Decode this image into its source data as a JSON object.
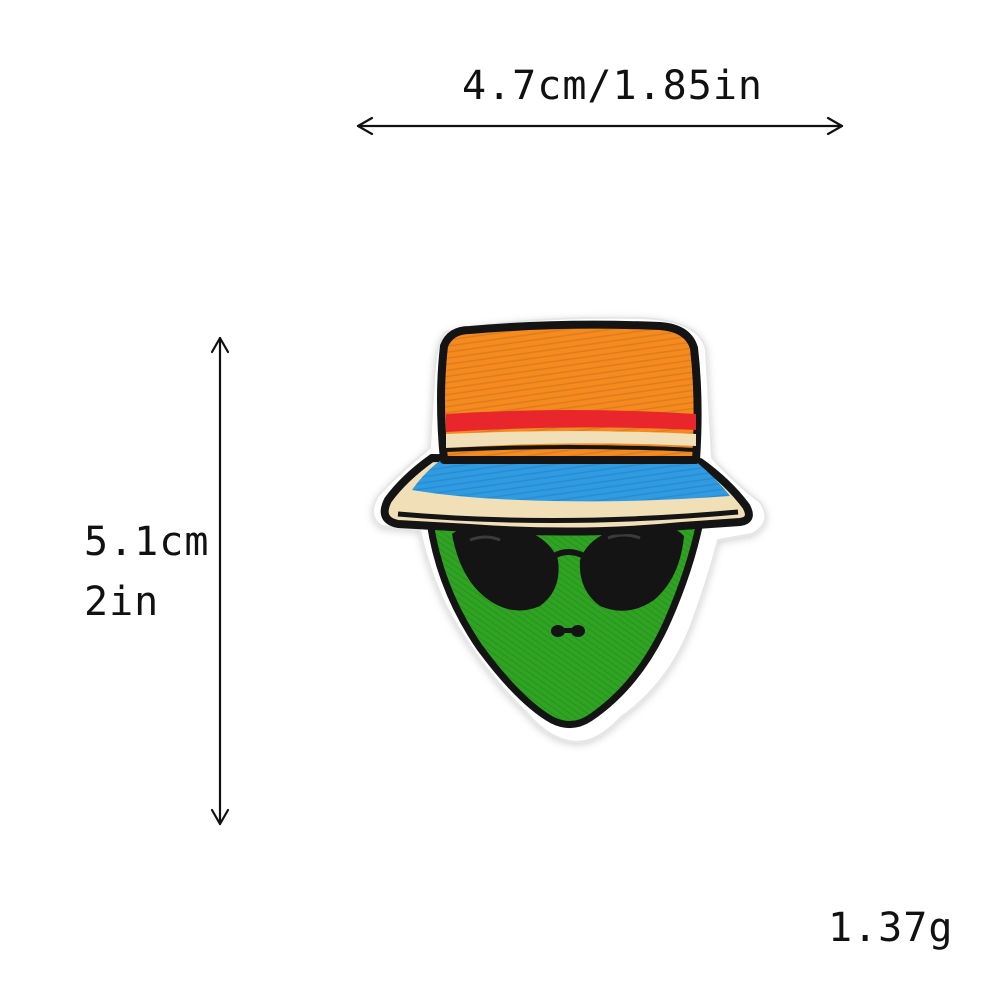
{
  "dimensions": {
    "width_label": "4.7cm/1.85in",
    "height_cm_label": "5.1cm",
    "height_in_label": "2in"
  },
  "weight_label": "1.37g",
  "colors": {
    "hat_orange": "#f58a1f",
    "hat_red_stripe": "#e8262b",
    "hat_cream_stripe": "#f1dfb8",
    "hat_blue_band": "#2f9be3",
    "alien_green": "#2fa423",
    "outline_black": "#141414",
    "patch_border_white": "#ffffff"
  },
  "icons": {
    "product": "alien-patch-icon"
  }
}
